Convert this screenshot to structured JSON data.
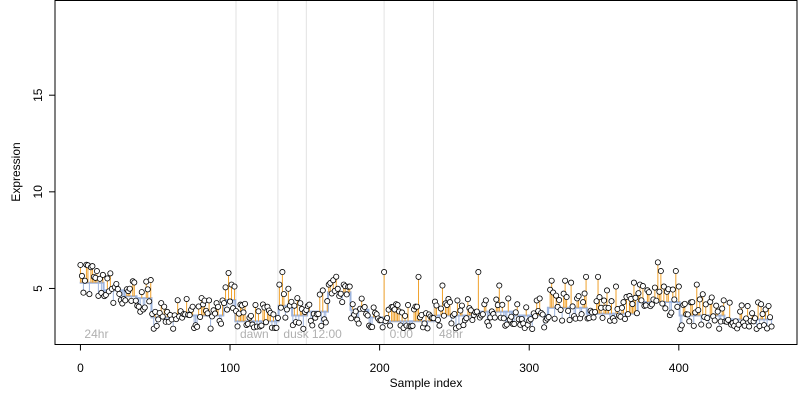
{
  "colors": {
    "divider": "#e2e2e2",
    "period_label": "#b0b0b0",
    "fit_line": "#9db4de",
    "residual_up": "#f0a12b",
    "residual_down": "#9db4de",
    "point_fill": "#ffffff",
    "point_stroke": "#000000"
  },
  "chart_data": {
    "type": "scatter",
    "title": "",
    "xlabel": "Sample index",
    "ylabel": "Expression",
    "xlim": [
      -17,
      479
    ],
    "ylim": [
      2.1,
      19.9
    ],
    "x_ticks": [
      0,
      100,
      200,
      300,
      400
    ],
    "y_ticks": [
      5,
      10,
      15
    ],
    "grid": false,
    "legend": "none",
    "n_samples": 463,
    "periods": [
      {
        "label": "24hr",
        "start": 0,
        "end": 103
      },
      {
        "label": "dawn",
        "start": 104,
        "end": 132
      },
      {
        "label": "dusk",
        "start": 133,
        "end": 151
      },
      {
        "label": "12:00",
        "start": 152,
        "end": 203
      },
      {
        "label": "0:00",
        "start": 204,
        "end": 236
      },
      {
        "label": "48hr",
        "start": 237,
        "end": 462
      }
    ],
    "dividers": [
      104,
      132,
      151,
      203,
      236
    ],
    "fitted_segments": [
      {
        "start": 0,
        "end": 15,
        "value": 5.3
      },
      {
        "start": 16,
        "end": 29,
        "value": 4.9
      },
      {
        "start": 30,
        "end": 37,
        "value": 4.6
      },
      {
        "start": 38,
        "end": 47,
        "value": 4.5
      },
      {
        "start": 48,
        "end": 68,
        "value": 3.5
      },
      {
        "start": 69,
        "end": 95,
        "value": 3.6
      },
      {
        "start": 96,
        "end": 103,
        "value": 4.4
      },
      {
        "start": 104,
        "end": 132,
        "value": 3.3
      },
      {
        "start": 133,
        "end": 141,
        "value": 4.1
      },
      {
        "start": 142,
        "end": 151,
        "value": 3.6
      },
      {
        "start": 152,
        "end": 165,
        "value": 3.8
      },
      {
        "start": 166,
        "end": 180,
        "value": 4.8
      },
      {
        "start": 181,
        "end": 192,
        "value": 3.9
      },
      {
        "start": 193,
        "end": 203,
        "value": 3.5
      },
      {
        "start": 204,
        "end": 236,
        "value": 3.3
      },
      {
        "start": 237,
        "end": 262,
        "value": 3.6
      },
      {
        "start": 263,
        "end": 288,
        "value": 3.8
      },
      {
        "start": 289,
        "end": 312,
        "value": 3.6
      },
      {
        "start": 313,
        "end": 338,
        "value": 4.0
      },
      {
        "start": 339,
        "end": 372,
        "value": 3.7
      },
      {
        "start": 373,
        "end": 400,
        "value": 4.3
      },
      {
        "start": 401,
        "end": 430,
        "value": 3.6
      },
      {
        "start": 431,
        "end": 462,
        "value": 3.4
      }
    ],
    "highlight_points": [
      {
        "x": 3,
        "y": 5.4
      },
      {
        "x": 5,
        "y": 6.2
      },
      {
        "x": 7,
        "y": 6.1
      },
      {
        "x": 9,
        "y": 5.6
      },
      {
        "x": 11,
        "y": 5.9
      },
      {
        "x": 13,
        "y": 5.5
      },
      {
        "x": 15,
        "y": 5.7
      },
      {
        "x": 99,
        "y": 5.8
      },
      {
        "x": 101,
        "y": 5.2
      },
      {
        "x": 103,
        "y": 5.1
      },
      {
        "x": 133,
        "y": 5.2
      },
      {
        "x": 135,
        "y": 5.85
      },
      {
        "x": 162,
        "y": 4.9
      },
      {
        "x": 166,
        "y": 5.2
      },
      {
        "x": 176,
        "y": 5.2
      },
      {
        "x": 180,
        "y": 5.1
      },
      {
        "x": 203,
        "y": 5.85
      },
      {
        "x": 226,
        "y": 5.6
      },
      {
        "x": 242,
        "y": 5.15
      },
      {
        "x": 266,
        "y": 5.85
      },
      {
        "x": 280,
        "y": 5.15
      },
      {
        "x": 315,
        "y": 5.4
      },
      {
        "x": 320,
        "y": 4.4
      },
      {
        "x": 324,
        "y": 5.4
      },
      {
        "x": 328,
        "y": 5.3
      },
      {
        "x": 338,
        "y": 5.6
      },
      {
        "x": 346,
        "y": 5.6
      },
      {
        "x": 352,
        "y": 4.9
      },
      {
        "x": 358,
        "y": 5.1
      },
      {
        "x": 370,
        "y": 5.3
      },
      {
        "x": 374,
        "y": 5.2
      },
      {
        "x": 386,
        "y": 6.35
      },
      {
        "x": 388,
        "y": 5.9
      },
      {
        "x": 390,
        "y": 5.1
      },
      {
        "x": 398,
        "y": 5.9
      },
      {
        "x": 400,
        "y": 5.1
      },
      {
        "x": 412,
        "y": 5.2
      },
      {
        "x": 416,
        "y": 4.7
      }
    ]
  }
}
